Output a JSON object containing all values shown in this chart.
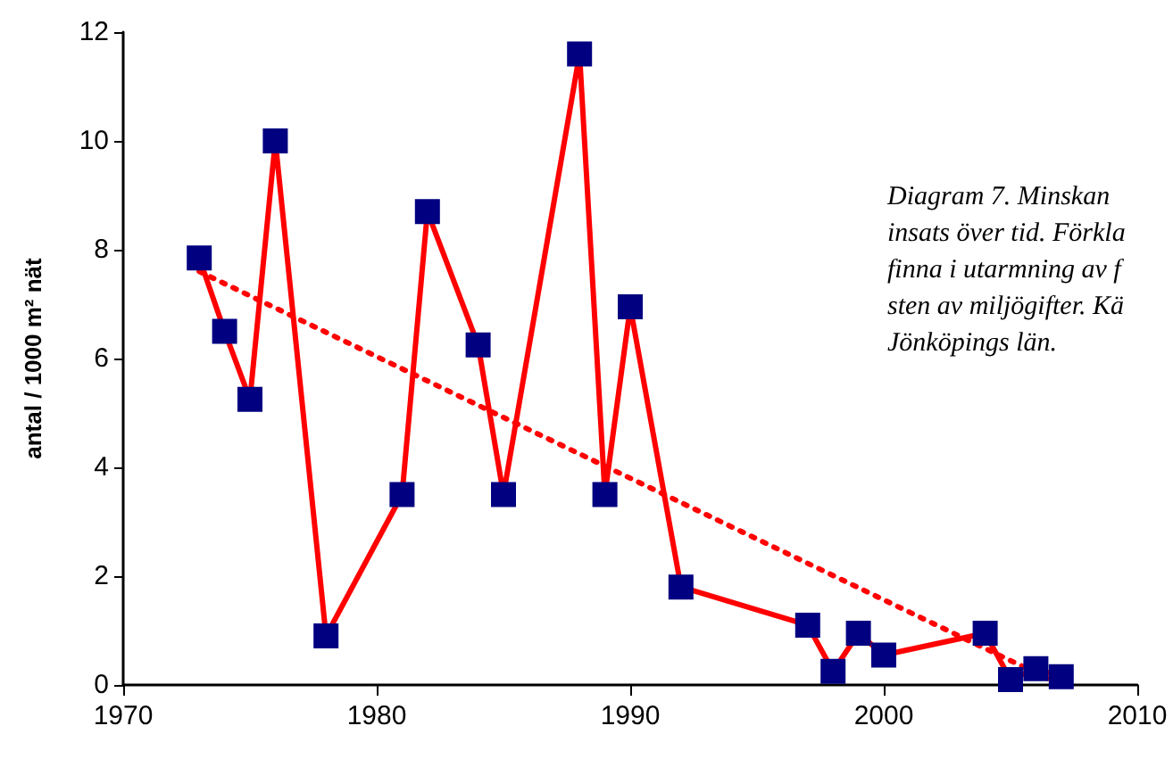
{
  "chart_data": {
    "type": "line",
    "ylabel": "antal / 1000 m² nät",
    "xlim": [
      1970,
      2010
    ],
    "xticks": [
      1970,
      1980,
      1990,
      2000,
      2010
    ],
    "ylim": [
      0,
      12
    ],
    "yticks": [
      0,
      2,
      4,
      6,
      8,
      10,
      12
    ],
    "grid": false,
    "marker": "square",
    "line_style": "solid",
    "annotations": [
      "Diagram 7. Minskan\ninsats över tid. Förkla\nfinna i utarmning av f\nsten av miljögifter. Kä\nJönköpings län."
    ],
    "series": [
      {
        "color": "#ff0000",
        "colors": [
          "#000080",
          "#000080",
          "#000080",
          "#000080",
          "#000080",
          "#000080",
          "#000080",
          "#000080",
          "#000080",
          "#000080",
          "#000080",
          "#000080",
          "#000080",
          "#000080",
          "#000080",
          "#000080",
          "#000080",
          "#000080",
          "#000080",
          "#000080",
          "#000080"
        ],
        "x": [
          1973,
          1974,
          1975,
          1976,
          1978,
          1981,
          1982,
          1984,
          1985,
          1988,
          1989,
          1990,
          1992,
          1997,
          1998,
          1999,
          2000,
          2004,
          2005,
          2006,
          2007
        ],
        "values": [
          7.85,
          6.5,
          5.25,
          10,
          0.9,
          3.5,
          8.7,
          6.25,
          3.5,
          11.6,
          3.5,
          6.95,
          1.8,
          1.1,
          0.25,
          0.95,
          0.55,
          0.95,
          0.1,
          0.3,
          0.15
        ]
      },
      {
        "type": "line",
        "color": "#ff0000",
        "marker": "none",
        "line_style": "dotted",
        "x": [
          1973,
          2007
        ],
        "values": [
          7.6,
          0
        ]
      }
    ]
  }
}
